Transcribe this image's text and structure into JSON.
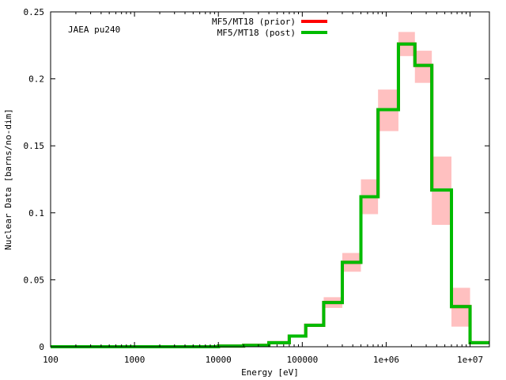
{
  "chart_data": {
    "type": "line",
    "plot_label": "JAEA pu240",
    "xlabel": "Energy [eV]",
    "ylabel": "Nuclear Data [barns/no-dim]",
    "x_scale": "log",
    "xlim": [
      100,
      17000000
    ],
    "ylim": [
      0,
      0.25
    ],
    "x_ticks": [
      {
        "value": 100,
        "label": "100"
      },
      {
        "value": 1000,
        "label": "1000"
      },
      {
        "value": 10000,
        "label": "10000"
      },
      {
        "value": 100000,
        "label": "100000"
      },
      {
        "value": 1000000,
        "label": "1e+06"
      },
      {
        "value": 10000000,
        "label": "1e+07"
      }
    ],
    "y_ticks": [
      {
        "value": 0,
        "label": "0"
      },
      {
        "value": 0.05,
        "label": "0.05"
      },
      {
        "value": 0.1,
        "label": "0.1"
      },
      {
        "value": 0.15,
        "label": "0.15"
      },
      {
        "value": 0.2,
        "label": "0.2"
      },
      {
        "value": 0.25,
        "label": "0.25"
      }
    ],
    "legend_position": "top-center",
    "grid": false,
    "series": [
      {
        "name": "MF5/MT18 (prior)",
        "color": "#ff0000",
        "style": "step",
        "bins": [
          [
            100,
            10000,
            0.0
          ],
          [
            10000,
            20000,
            0.0005
          ],
          [
            20000,
            40000,
            0.001
          ],
          [
            40000,
            70000,
            0.003
          ],
          [
            70000,
            110000,
            0.008
          ],
          [
            110000,
            180000,
            0.016
          ],
          [
            180000,
            300000,
            0.033
          ],
          [
            300000,
            500000,
            0.063
          ],
          [
            500000,
            800000,
            0.112
          ],
          [
            800000,
            1400000,
            0.177
          ],
          [
            1400000,
            2200000,
            0.226
          ],
          [
            2200000,
            3500000,
            0.21
          ],
          [
            3500000,
            6000000,
            0.117
          ],
          [
            6000000,
            10000000,
            0.03
          ],
          [
            10000000,
            17000000,
            0.003
          ]
        ]
      },
      {
        "name": "MF5/MT18 (post)",
        "color": "#00bb00",
        "style": "step",
        "bins": [
          [
            100,
            10000,
            0.0
          ],
          [
            10000,
            20000,
            0.0005
          ],
          [
            20000,
            40000,
            0.001
          ],
          [
            40000,
            70000,
            0.003
          ],
          [
            70000,
            110000,
            0.008
          ],
          [
            110000,
            180000,
            0.016
          ],
          [
            180000,
            300000,
            0.033
          ],
          [
            300000,
            500000,
            0.063
          ],
          [
            500000,
            800000,
            0.112
          ],
          [
            800000,
            1400000,
            0.177
          ],
          [
            1400000,
            2200000,
            0.226
          ],
          [
            2200000,
            3500000,
            0.21
          ],
          [
            3500000,
            6000000,
            0.117
          ],
          [
            6000000,
            10000000,
            0.03
          ],
          [
            10000000,
            17000000,
            0.003
          ]
        ]
      }
    ],
    "uncertainty_band": {
      "color": "#ffc0c0",
      "bins": [
        [
          180000,
          300000,
          0.029,
          0.037
        ],
        [
          300000,
          500000,
          0.056,
          0.07
        ],
        [
          500000,
          800000,
          0.099,
          0.125
        ],
        [
          800000,
          1400000,
          0.161,
          0.192
        ],
        [
          1400000,
          2200000,
          0.217,
          0.235
        ],
        [
          2200000,
          3500000,
          0.197,
          0.221
        ],
        [
          3500000,
          6000000,
          0.091,
          0.142
        ],
        [
          6000000,
          10000000,
          0.015,
          0.044
        ]
      ]
    }
  }
}
